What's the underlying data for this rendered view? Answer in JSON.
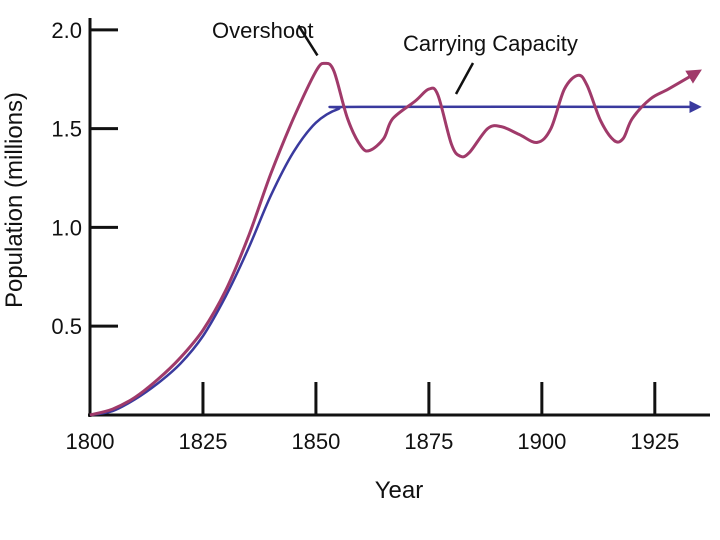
{
  "chart_data": {
    "type": "line",
    "title": "",
    "xlabel": "Year",
    "ylabel": "Population (millions)",
    "xlim": [
      1800,
      1935
    ],
    "ylim": [
      0.05,
      2.05
    ],
    "xticks": [
      1800,
      1825,
      1850,
      1875,
      1900,
      1925
    ],
    "yticks": [
      0.5,
      1.0,
      1.5,
      2.0
    ],
    "ytick_labels": [
      "0.5",
      "1.0",
      "1.5",
      "2.0"
    ],
    "grid": false,
    "series": [
      {
        "name": "Carrying Capacity",
        "color": "#3a3a9e",
        "arrow": true,
        "points": [
          [
            1800,
            0.05
          ],
          [
            1805,
            0.07
          ],
          [
            1810,
            0.13
          ],
          [
            1815,
            0.21
          ],
          [
            1820,
            0.31
          ],
          [
            1825,
            0.45
          ],
          [
            1830,
            0.65
          ],
          [
            1835,
            0.89
          ],
          [
            1840,
            1.16
          ],
          [
            1845,
            1.38
          ],
          [
            1850,
            1.53
          ],
          [
            1855,
            1.6
          ],
          [
            1860,
            1.61
          ],
          [
            1934,
            1.61
          ]
        ]
      },
      {
        "name": "Population",
        "color": "#a03a6a",
        "arrow": true,
        "points": [
          [
            1800,
            0.05
          ],
          [
            1805,
            0.08
          ],
          [
            1810,
            0.14
          ],
          [
            1815,
            0.23
          ],
          [
            1820,
            0.34
          ],
          [
            1825,
            0.48
          ],
          [
            1830,
            0.68
          ],
          [
            1835,
            0.95
          ],
          [
            1840,
            1.27
          ],
          [
            1845,
            1.55
          ],
          [
            1850,
            1.79
          ],
          [
            1852,
            1.83
          ],
          [
            1854,
            1.79
          ],
          [
            1857,
            1.55
          ],
          [
            1860,
            1.41
          ],
          [
            1862,
            1.39
          ],
          [
            1865,
            1.45
          ],
          [
            1867,
            1.55
          ],
          [
            1872,
            1.64
          ],
          [
            1875,
            1.7
          ],
          [
            1877,
            1.67
          ],
          [
            1880,
            1.42
          ],
          [
            1882,
            1.36
          ],
          [
            1884,
            1.38
          ],
          [
            1888,
            1.5
          ],
          [
            1891,
            1.51
          ],
          [
            1895,
            1.47
          ],
          [
            1899,
            1.43
          ],
          [
            1902,
            1.5
          ],
          [
            1905,
            1.7
          ],
          [
            1908,
            1.77
          ],
          [
            1910,
            1.72
          ],
          [
            1913,
            1.54
          ],
          [
            1916,
            1.44
          ],
          [
            1918,
            1.45
          ],
          [
            1920,
            1.55
          ],
          [
            1924,
            1.65
          ],
          [
            1928,
            1.7
          ],
          [
            1934,
            1.78
          ]
        ]
      }
    ],
    "annotations": [
      {
        "text": "Overshoot",
        "target": [
          1851,
          1.82
        ]
      },
      {
        "text": "Carrying Capacity",
        "target": [
          1881,
          1.665
        ]
      }
    ]
  }
}
